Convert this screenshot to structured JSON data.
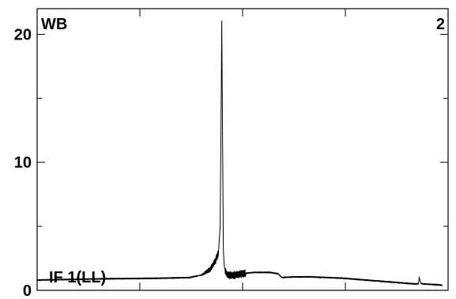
{
  "chart_data": {
    "type": "line",
    "title": "",
    "xlabel": "",
    "ylabel": "",
    "corner_labels": {
      "top_left": "WB",
      "top_right": "2",
      "bottom_left": "IF 1(LL)"
    },
    "ylim": [
      0,
      22
    ],
    "y_ticks": [
      0,
      10,
      20
    ],
    "y_minor_ticks": [
      5,
      15
    ],
    "xlim": [
      0,
      512
    ],
    "x_ticks": [
      0,
      128,
      256,
      384,
      512
    ],
    "grid": false,
    "series": [
      {
        "color": "#000000",
        "x": [
          0,
          40,
          80,
          120,
          160,
          190,
          205,
          215,
          222,
          226,
          228,
          229,
          230,
          231,
          232,
          233,
          234,
          236,
          240,
          248,
          256,
          270,
          290,
          300,
          305,
          320,
          340,
          360,
          380,
          400,
          420,
          440,
          460,
          470,
          475,
          476,
          478,
          480,
          495,
          505
        ],
        "y": [
          0.8,
          0.85,
          0.9,
          0.92,
          0.95,
          1.0,
          1.2,
          1.6,
          2.3,
          3.0,
          5.0,
          12.0,
          21.0,
          12.0,
          3.2,
          2.0,
          1.6,
          1.3,
          1.15,
          1.2,
          1.3,
          1.4,
          1.4,
          1.3,
          1.0,
          1.05,
          1.05,
          1.0,
          0.95,
          0.85,
          0.75,
          0.65,
          0.55,
          0.5,
          0.5,
          1.0,
          0.55,
          0.5,
          0.45,
          0.4
        ]
      }
    ]
  }
}
